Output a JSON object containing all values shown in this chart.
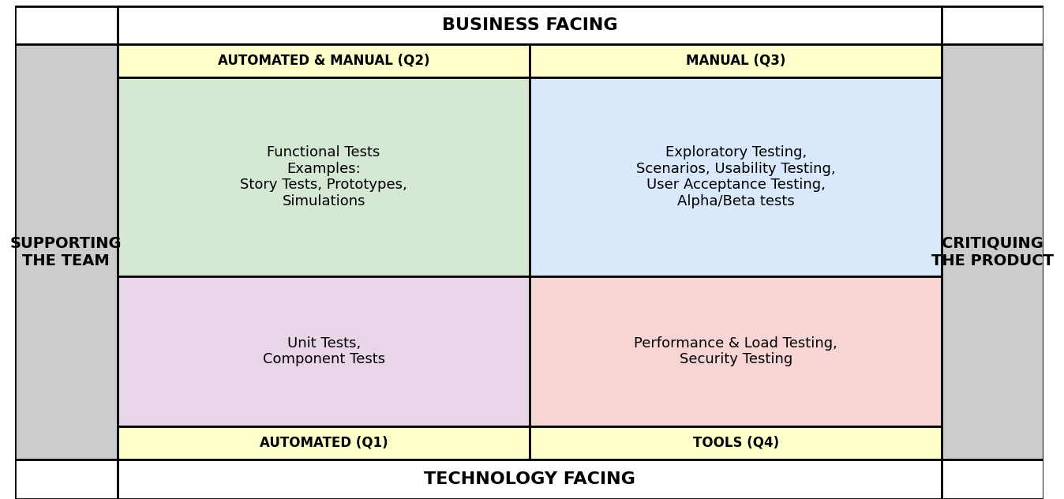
{
  "title_top": "BUSINESS FACING",
  "title_bottom": "TECHNOLOGY FACING",
  "title_left": "SUPPORTING\nTHE TEAM",
  "title_right": "CRITIQUING\nTHE PRODUCT",
  "q2_header": "AUTOMATED & MANUAL (Q2)",
  "q3_header": "MANUAL (Q3)",
  "q1_header": "AUTOMATED (Q1)",
  "q4_header": "TOOLS (Q4)",
  "q2_text": "Functional Tests\nExamples:\nStory Tests, Prototypes,\nSimulations",
  "q3_text": "Exploratory Testing,\nScenarios, Usability Testing,\nUser Acceptance Testing,\nAlpha/Beta tests",
  "q1_text": "Unit Tests,\nComponent Tests",
  "q4_text": "Performance & Load Testing,\nSecurity Testing",
  "bg_color": "#cccccc",
  "header_bg": "#ffffcc",
  "q2_bg": "#d5e8d4",
  "q3_bg": "#dae8fc",
  "q1_bg": "#e8d5e8",
  "q4_bg": "#f8d5d5",
  "border_color": "#000000"
}
